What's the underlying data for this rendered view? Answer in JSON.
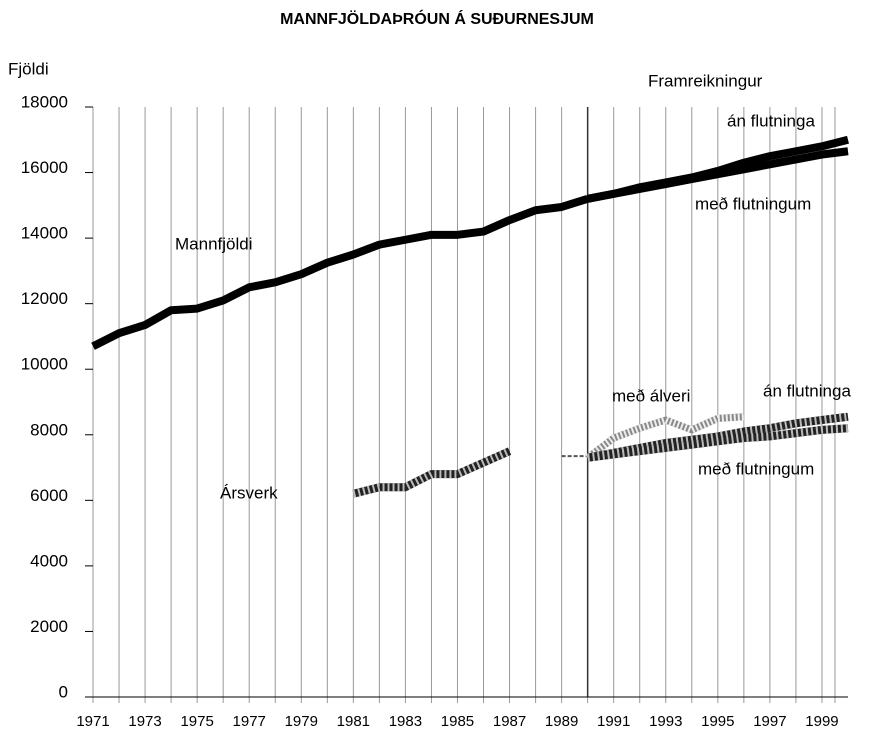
{
  "chart_data": {
    "type": "line",
    "title": "MANNFJÖLDAÞRÓUN Á SUÐURNESJUM",
    "y_label": "Fjöldi",
    "annotations": [
      "Framreikningur"
    ],
    "x": [
      1971,
      1972,
      1973,
      1974,
      1975,
      1976,
      1977,
      1978,
      1979,
      1980,
      1981,
      1982,
      1983,
      1984,
      1985,
      1986,
      1987,
      1988,
      1989,
      1990,
      1991,
      1992,
      1993,
      1994,
      1995,
      1996,
      1997,
      1998,
      1999,
      2000
    ],
    "xlim": [
      1971,
      2000
    ],
    "xticks": [
      1971,
      1973,
      1975,
      1977,
      1979,
      1981,
      1983,
      1985,
      1987,
      1989,
      1991,
      1993,
      1995,
      1997,
      1999
    ],
    "ylim": [
      0,
      18000
    ],
    "yticks": [
      0,
      2000,
      4000,
      6000,
      8000,
      10000,
      12000,
      14000,
      16000,
      18000
    ],
    "divider_x": 1990,
    "series": [
      {
        "name": "Mannfjöldi",
        "color": "#000000",
        "values": [
          10700,
          11100,
          11350,
          11800,
          11850,
          12100,
          12500,
          12650,
          12900,
          13250,
          13500,
          13800,
          13950,
          14100,
          14100,
          14200,
          14550,
          14850,
          14950,
          15200,
          null,
          null,
          null,
          null,
          null,
          null,
          null,
          null,
          null,
          null
        ]
      },
      {
        "name": "án flutninga",
        "color": "#000000",
        "values": [
          null,
          null,
          null,
          null,
          null,
          null,
          null,
          null,
          null,
          null,
          null,
          null,
          null,
          null,
          null,
          null,
          null,
          null,
          null,
          15200,
          15350,
          15550,
          15700,
          15850,
          16050,
          16300,
          16500,
          16650,
          16800,
          17000
        ]
      },
      {
        "name": "með flutningum",
        "color": "#000000",
        "values": [
          null,
          null,
          null,
          null,
          null,
          null,
          null,
          null,
          null,
          null,
          null,
          null,
          null,
          null,
          null,
          null,
          null,
          null,
          null,
          15200,
          15350,
          15500,
          15650,
          15800,
          15950,
          16100,
          16250,
          16400,
          16550,
          16650
        ]
      },
      {
        "name": "Ársverk",
        "color": "#222222",
        "stroke": "hatched",
        "values": [
          null,
          null,
          null,
          null,
          null,
          null,
          null,
          null,
          null,
          null,
          6200,
          6400,
          6400,
          6800,
          6800,
          7150,
          7500,
          null,
          null,
          null,
          null,
          null,
          null,
          null,
          null,
          null,
          null,
          null,
          null,
          null
        ]
      },
      {
        "color": "#555555",
        "stroke": "thin",
        "values": [
          null,
          null,
          null,
          null,
          null,
          null,
          null,
          null,
          null,
          null,
          null,
          null,
          null,
          null,
          null,
          null,
          null,
          null,
          7350,
          7350,
          null,
          null,
          null,
          null,
          null,
          null,
          null,
          null,
          null,
          null
        ]
      },
      {
        "name": "með álveri",
        "color": "#888888",
        "stroke": "striped",
        "values": [
          null,
          null,
          null,
          null,
          null,
          null,
          null,
          null,
          null,
          null,
          null,
          null,
          null,
          null,
          null,
          null,
          null,
          null,
          null,
          7300,
          7900,
          8200,
          8450,
          8150,
          8500,
          8550,
          null,
          null,
          null,
          null
        ]
      },
      {
        "name": "án flutninga",
        "color": "#222222",
        "stroke": "hatched",
        "values": [
          null,
          null,
          null,
          null,
          null,
          null,
          null,
          null,
          null,
          null,
          null,
          null,
          null,
          null,
          null,
          null,
          null,
          null,
          null,
          7300,
          7450,
          7600,
          7750,
          7850,
          7950,
          8100,
          8200,
          8350,
          8450,
          8550
        ]
      },
      {
        "name": "með flutningum",
        "color": "#222222",
        "stroke": "hatched",
        "values": [
          null,
          null,
          null,
          null,
          null,
          null,
          null,
          null,
          null,
          null,
          null,
          null,
          null,
          null,
          null,
          null,
          null,
          null,
          null,
          7300,
          7400,
          7500,
          7600,
          7700,
          7800,
          7900,
          7950,
          8050,
          8150,
          8200
        ]
      }
    ]
  }
}
